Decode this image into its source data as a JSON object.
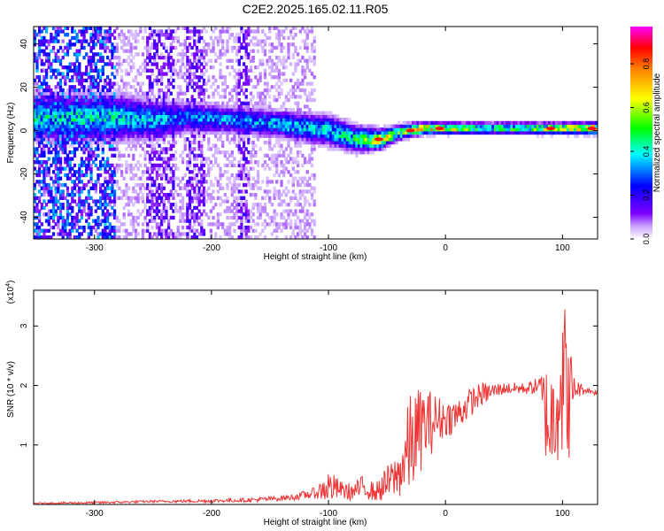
{
  "title": "C2E2.2025.165.02.11.R05",
  "chart_data": [
    {
      "type": "heatmap",
      "xlabel": "Height of straight line (km)",
      "ylabel": "Frequency (Hz)",
      "xlim": [
        -352,
        130
      ],
      "ylim": [
        -50,
        48
      ],
      "xticks": [
        -300,
        -200,
        -100,
        0,
        100
      ],
      "yticks": [
        -40,
        -20,
        0,
        20,
        40
      ],
      "colorbar": {
        "label": "Normalized spectral amplitude",
        "range": [
          0.0,
          0.97
        ],
        "ticks": [
          0.0,
          0.2,
          0.4,
          0.6,
          0.8
        ],
        "colormap": [
          "#ffffff",
          "#8000ff",
          "#0000ff",
          "#00ffff",
          "#00ff00",
          "#ffff00",
          "#ff8000",
          "#ff0000",
          "#ff00ff"
        ]
      },
      "band": [
        {
          "x": -280,
          "f_center": 6,
          "f_width": 12,
          "amplitude": 0.45
        },
        {
          "x": -250,
          "f_center": 5,
          "f_width": 10,
          "amplitude": 0.4
        },
        {
          "x": -220,
          "f_center": 6,
          "f_width": 8,
          "amplitude": 0.35
        },
        {
          "x": -180,
          "f_center": 5,
          "f_width": 7,
          "amplitude": 0.38
        },
        {
          "x": -140,
          "f_center": 3,
          "f_width": 7,
          "amplitude": 0.42
        },
        {
          "x": -100,
          "f_center": 0,
          "f_width": 8,
          "amplitude": 0.45
        },
        {
          "x": -75,
          "f_center": -4,
          "f_width": 7,
          "amplitude": 0.5
        },
        {
          "x": -55,
          "f_center": -4,
          "f_width": 5,
          "amplitude": 0.85
        },
        {
          "x": -40,
          "f_center": -1,
          "f_width": 4,
          "amplitude": 0.55
        },
        {
          "x": -20,
          "f_center": 1,
          "f_width": 3,
          "amplitude": 0.9
        },
        {
          "x": 0,
          "f_center": 1,
          "f_width": 3,
          "amplitude": 0.7
        },
        {
          "x": 30,
          "f_center": 1,
          "f_width": 3,
          "amplitude": 0.55
        },
        {
          "x": 70,
          "f_center": 1,
          "f_width": 3,
          "amplitude": 0.6
        },
        {
          "x": 100,
          "f_center": 1,
          "f_width": 3,
          "amplitude": 0.75
        },
        {
          "x": 130,
          "f_center": 1,
          "f_width": 3,
          "amplitude": 0.9
        }
      ],
      "peaks": [
        {
          "x": -57,
          "f": -4
        },
        {
          "x": -30,
          "f": 0
        },
        {
          "x": -5,
          "f": 1
        },
        {
          "x": 90,
          "f": 1
        },
        {
          "x": 125,
          "f": 1
        }
      ]
    },
    {
      "type": "line",
      "xlabel": "Height of straight line (km)",
      "ylabel": "SNR (10 * v/v)",
      "y_multiplier": "(x10",
      "y_multiplier_exp": "4",
      "xlim": [
        -352,
        130
      ],
      "ylim": [
        0,
        3.6
      ],
      "xticks": [
        -300,
        -200,
        -100,
        0,
        100
      ],
      "yticks": [
        1,
        2,
        3
      ],
      "color": "#ee3333",
      "series": [
        {
          "x": [
            -352,
            -300,
            -250,
            -200,
            -160,
            -130,
            -110,
            -100,
            -90,
            -80,
            -70,
            -60,
            -50,
            -40,
            -30,
            -20,
            -10,
            0,
            10,
            20,
            30,
            40,
            50,
            60,
            70,
            80,
            85,
            90,
            95,
            100,
            105,
            110,
            120,
            130
          ],
          "y": [
            0.02,
            0.03,
            0.05,
            0.06,
            0.08,
            0.12,
            0.2,
            0.3,
            0.25,
            0.2,
            0.3,
            0.2,
            0.35,
            0.5,
            1.0,
            1.3,
            1.4,
            1.45,
            1.5,
            1.7,
            1.85,
            1.9,
            1.95,
            1.95,
            1.95,
            2.0,
            1.6,
            1.3,
            1.9,
            2.2,
            1.8,
            1.95,
            1.92,
            1.88
          ],
          "spread": [
            0.01,
            0.02,
            0.02,
            0.03,
            0.04,
            0.05,
            0.1,
            0.3,
            0.15,
            0.15,
            0.2,
            0.15,
            0.3,
            0.4,
            0.9,
            0.7,
            0.5,
            0.3,
            0.3,
            0.25,
            0.2,
            0.15,
            0.1,
            0.1,
            0.1,
            0.15,
            0.8,
            1.0,
            1.2,
            1.5,
            1.2,
            0.2,
            0.05,
            0.05
          ]
        }
      ]
    }
  ]
}
